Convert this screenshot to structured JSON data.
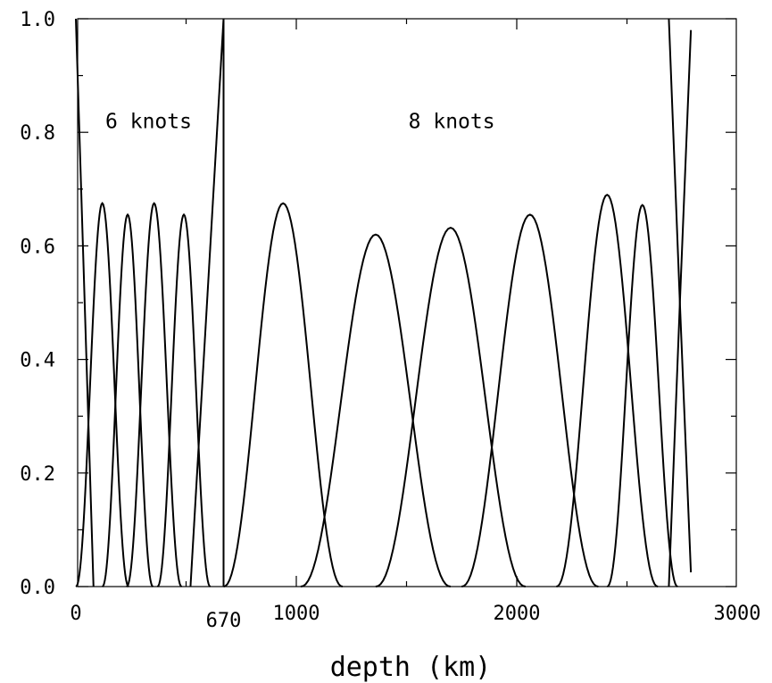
{
  "chart_data": {
    "type": "line",
    "title": "",
    "xlabel": "depth (km)",
    "ylabel": "",
    "xlim": [
      0,
      2890
    ],
    "ylim": [
      0,
      1
    ],
    "grid": false,
    "x_ticks": [
      {
        "value": 0,
        "label": "0"
      },
      {
        "value": 670,
        "label": "670"
      },
      {
        "value": 1000,
        "label": "1000"
      },
      {
        "value": 2000,
        "label": "2000"
      },
      {
        "value": 3000,
        "label": "3000"
      }
    ],
    "y_ticks": [
      {
        "value": 0.0,
        "label": "0.0"
      },
      {
        "value": 0.2,
        "label": "0.2"
      },
      {
        "value": 0.4,
        "label": "0.4"
      },
      {
        "value": 0.6,
        "label": "0.6"
      },
      {
        "value": 0.8,
        "label": "0.8"
      },
      {
        "value": 1.0,
        "label": "1.0"
      }
    ],
    "annotations": [
      {
        "text": "6 knots",
        "x": 330,
        "y": 0.82
      },
      {
        "text": "8 knots",
        "x": 1705,
        "y": 0.82
      }
    ],
    "series": [
      {
        "x": [
          0,
          40,
          80
        ],
        "values": [
          1.0,
          0.5,
          0.0
        ]
      },
      {
        "x": [
          0,
          120,
          240
        ],
        "values": [
          0.0,
          0.675,
          0.0
        ]
      },
      {
        "x": [
          120,
          235,
          350
        ],
        "values": [
          0.0,
          0.655,
          0.0
        ]
      },
      {
        "x": [
          230,
          355,
          480
        ],
        "values": [
          0.0,
          0.675,
          0.0
        ]
      },
      {
        "x": [
          370,
          490,
          610
        ],
        "values": [
          0.0,
          0.655,
          0.0
        ]
      },
      {
        "x": [
          520,
          670
        ],
        "values": [
          0.0,
          1.0
        ]
      },
      {
        "x": [
          670,
          670,
          670
        ],
        "values": [
          1.0,
          0.5,
          0.0
        ]
      },
      {
        "x": [
          670,
          940,
          1210
        ],
        "values": [
          0.0,
          0.675,
          0.0
        ]
      },
      {
        "x": [
          1020,
          1360,
          1700
        ],
        "values": [
          0.0,
          0.62,
          0.0
        ]
      },
      {
        "x": [
          1360,
          1700,
          2040
        ],
        "values": [
          0.0,
          0.632,
          0.0
        ]
      },
      {
        "x": [
          1750,
          2060,
          2370
        ],
        "values": [
          0.0,
          0.655,
          0.0
        ]
      },
      {
        "x": [
          2180,
          2410,
          2640
        ],
        "values": [
          0.0,
          0.69,
          0.0
        ]
      },
      {
        "x": [
          2410,
          2570,
          2730
        ],
        "values": [
          0.0,
          0.672,
          0.0
        ]
      },
      {
        "x": [
          2690,
          2740,
          2790
        ],
        "values": [
          0.0,
          0.5,
          0.98
        ]
      },
      {
        "x": [
          2690,
          2740,
          2790
        ],
        "values": [
          1.0,
          0.5,
          0.025
        ]
      }
    ]
  }
}
